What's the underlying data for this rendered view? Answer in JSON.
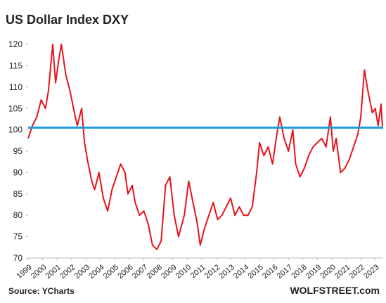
{
  "chart_data": {
    "type": "line",
    "title": "US Dollar Index DXY",
    "source": "Source: YCharts",
    "watermark": "WOLFSTREET.com",
    "x": [
      1999.0,
      1999.3,
      1999.6,
      1999.9,
      2000.2,
      2000.4,
      2000.7,
      2000.9,
      2001.1,
      2001.3,
      2001.6,
      2001.9,
      2002.2,
      2002.4,
      2002.7,
      2002.9,
      2003.1,
      2003.4,
      2003.6,
      2003.9,
      2004.2,
      2004.5,
      2004.8,
      2005.1,
      2005.4,
      2005.7,
      2005.9,
      2006.2,
      2006.4,
      2006.7,
      2007.0,
      2007.3,
      2007.6,
      2007.9,
      2008.2,
      2008.5,
      2008.8,
      2009.1,
      2009.4,
      2009.8,
      2010.1,
      2010.4,
      2010.7,
      2010.9,
      2011.2,
      2011.5,
      2011.8,
      2012.1,
      2012.4,
      2012.7,
      2013.0,
      2013.3,
      2013.6,
      2013.9,
      2014.2,
      2014.5,
      2014.8,
      2015.0,
      2015.3,
      2015.6,
      2015.9,
      2016.2,
      2016.4,
      2016.7,
      2017.0,
      2017.3,
      2017.5,
      2017.8,
      2018.1,
      2018.4,
      2018.7,
      2019.0,
      2019.3,
      2019.6,
      2019.9,
      2020.1,
      2020.3,
      2020.6,
      2020.9,
      2021.2,
      2021.5,
      2021.8,
      2022.0,
      2022.25,
      2022.5,
      2022.8,
      2023.0,
      2023.2,
      2023.4,
      2023.5
    ],
    "series": [
      {
        "name": "DXY",
        "color": "#e8141b",
        "values": [
          98,
          101,
          103,
          107,
          105,
          109,
          120,
          111,
          116,
          120,
          113,
          109,
          104,
          101,
          105,
          97,
          93,
          88,
          86,
          90,
          84,
          81,
          86,
          89,
          92,
          90,
          85,
          87,
          83,
          80,
          81,
          78,
          73,
          72,
          74,
          87,
          89,
          80,
          75,
          80,
          88,
          83,
          78,
          73,
          77,
          80,
          83,
          79,
          80,
          82,
          84,
          80,
          82,
          80,
          80,
          82,
          90,
          97,
          94,
          96,
          92,
          99,
          103,
          98,
          95,
          100,
          92,
          89,
          91,
          94,
          96,
          97,
          98,
          96,
          103,
          95,
          98,
          90,
          91,
          93,
          96,
          99,
          103,
          114,
          109,
          104,
          105,
          101,
          106,
          100.5
        ]
      }
    ],
    "hline": {
      "value": 100.5,
      "color": "#1c9bd8"
    },
    "xlim": [
      1999,
      2023.55
    ],
    "ylim": [
      70,
      121
    ],
    "xticks": [
      1999,
      2000,
      2001,
      2002,
      2003,
      2004,
      2005,
      2006,
      2007,
      2008,
      2009,
      2010,
      2011,
      2012,
      2013,
      2014,
      2015,
      2016,
      2017,
      2018,
      2019,
      2020,
      2021,
      2022,
      2023
    ],
    "yticks": [
      70,
      75,
      80,
      85,
      90,
      95,
      100,
      105,
      110,
      115,
      120
    ]
  }
}
